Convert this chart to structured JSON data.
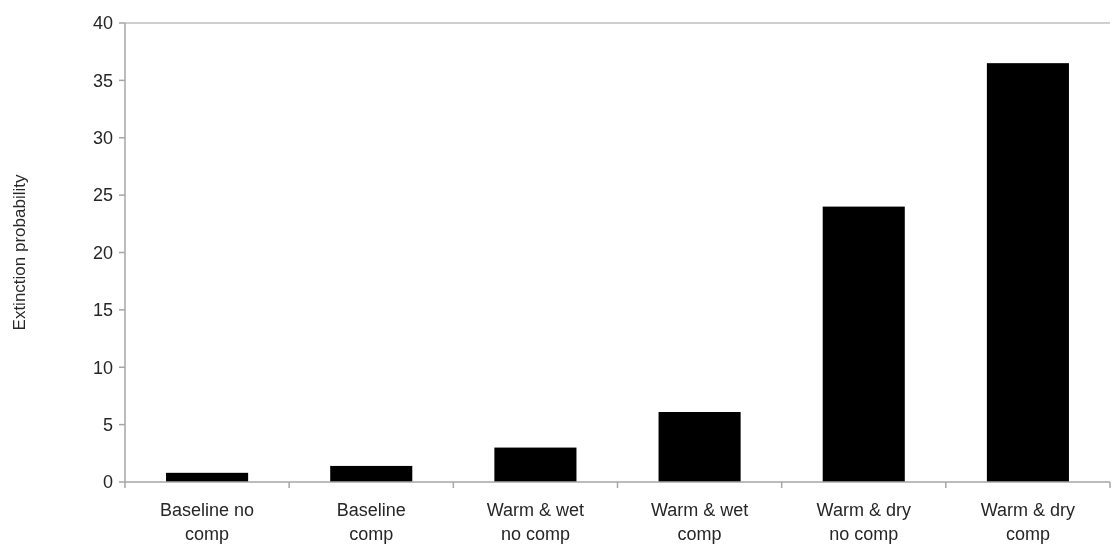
{
  "chart_data": {
    "type": "bar",
    "ylabel": "Extinction probability",
    "categories": [
      "Baseline no comp",
      "Baseline comp",
      "Warm & wet no comp",
      "Warm & wet comp",
      "Warm & dry no comp",
      "Warm & dry comp"
    ],
    "values": [
      0.8,
      1.4,
      3.0,
      6.1,
      24.0,
      36.5
    ],
    "color": "#000000",
    "ylim": [
      0,
      40
    ],
    "yticks": [
      0,
      5,
      10,
      15,
      20,
      25,
      30,
      35,
      40
    ],
    "grid": false
  }
}
